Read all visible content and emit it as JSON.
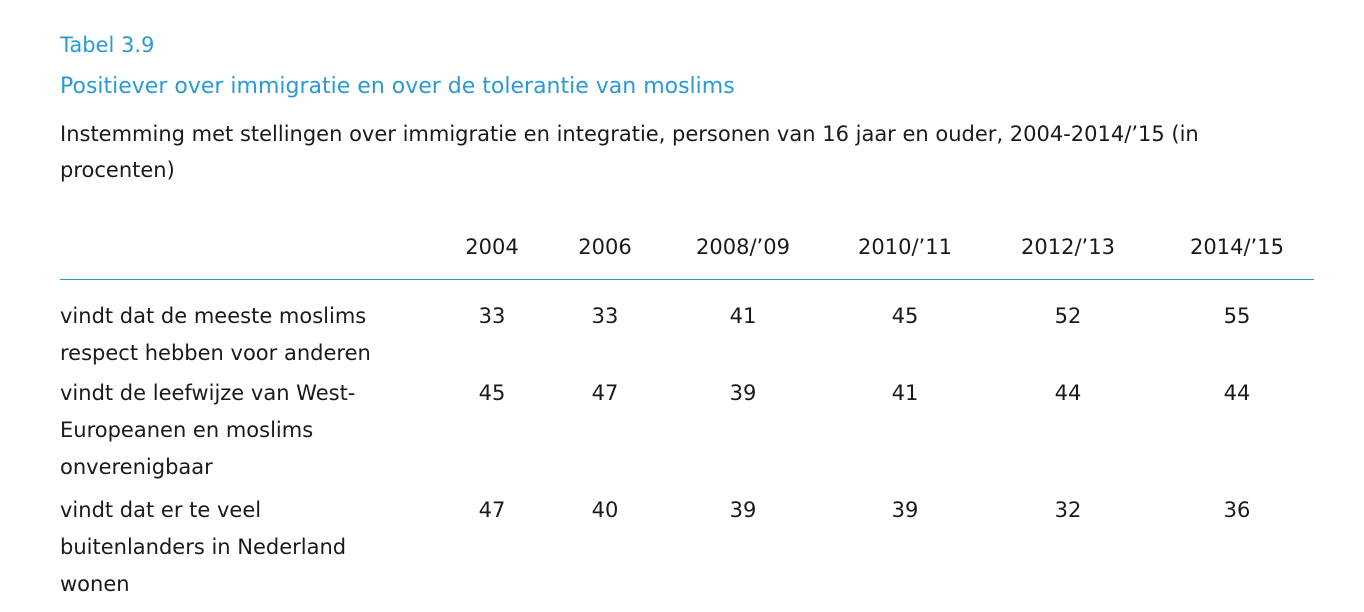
{
  "table": {
    "label": "Tabel 3.9",
    "title": "Positiever over immigratie en over de tolerantie van moslims",
    "subtitle": "Instemming met stellingen over immigratie en integratie, personen van 16 jaar en ouder, 2004-2014/’15 (in procenten)",
    "columns": [
      "2004",
      "2006",
      "2008/’09",
      "2010/’11",
      "2012/’13",
      "2014/’15"
    ],
    "rows": [
      {
        "label": "vindt dat de meeste moslims respect hebben voor anderen",
        "values": [
          "33",
          "33",
          "41",
          "45",
          "52",
          "55"
        ]
      },
      {
        "label": "vindt de leefwijze van West-Europeanen en moslims onverenigbaar",
        "values": [
          "45",
          "47",
          "39",
          "41",
          "44",
          "44"
        ]
      },
      {
        "label": "vindt dat er te veel buitenlanders in Nederland wonen",
        "values": [
          "47",
          "40",
          "39",
          "39",
          "32",
          "36"
        ]
      }
    ]
  }
}
